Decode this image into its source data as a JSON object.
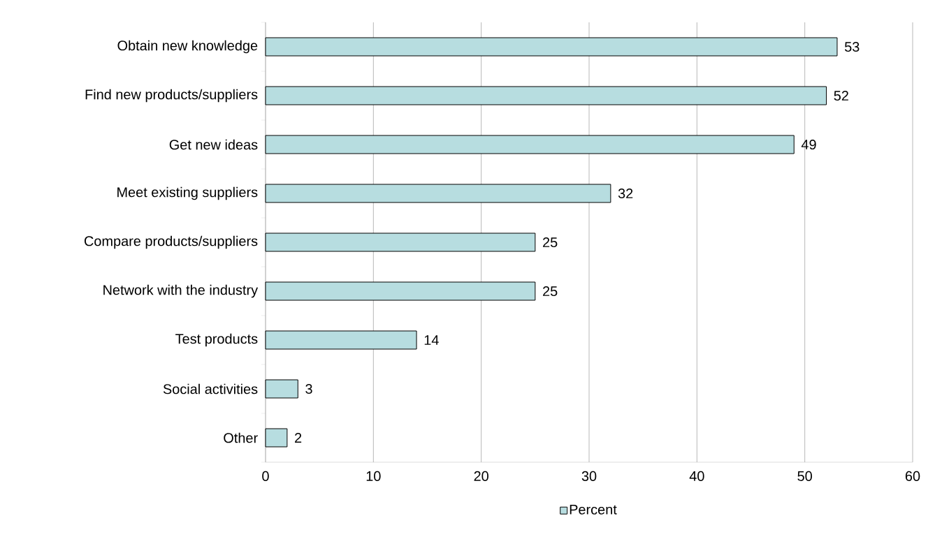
{
  "chart_data": {
    "type": "bar",
    "orientation": "horizontal",
    "categories": [
      "Obtain new knowledge",
      "Find new products/suppliers",
      "Get new ideas",
      "Meet existing suppliers",
      "Compare products/suppliers",
      "Network with the industry",
      "Test products",
      "Social activities",
      "Other"
    ],
    "series": [
      {
        "name": "Percent",
        "color": "#b7dde0",
        "values": [
          53,
          52,
          49,
          32,
          25,
          25,
          14,
          3,
          2
        ]
      }
    ],
    "xlim": [
      0,
      60
    ],
    "xticks": [
      0,
      10,
      20,
      30,
      40,
      50,
      60
    ],
    "grid": "x",
    "legend": "bottom",
    "data_labels": true
  }
}
